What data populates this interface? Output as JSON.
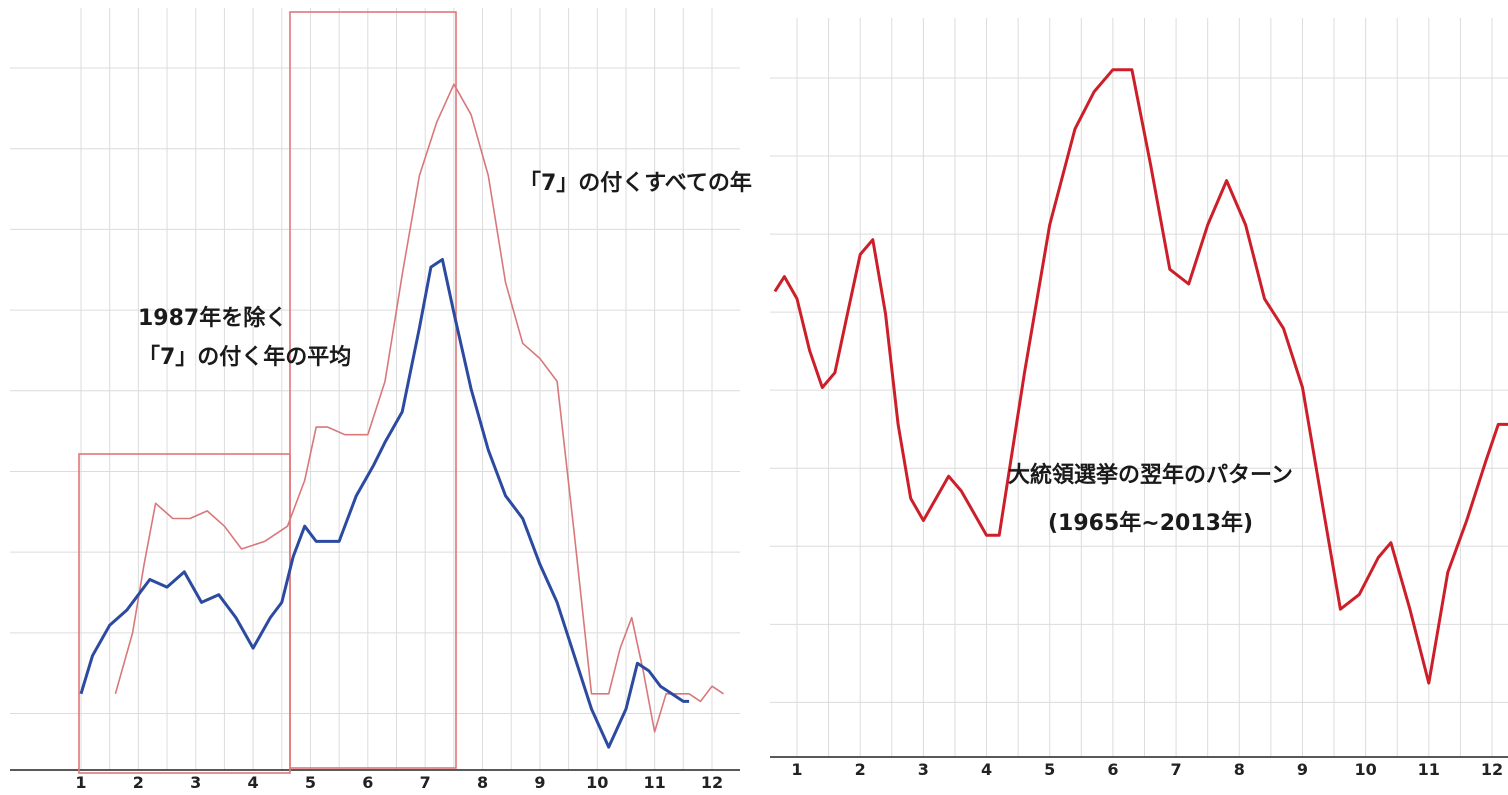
{
  "chart_data": [
    {
      "type": "line",
      "xlim": [
        1,
        12.2
      ],
      "ylim": [
        0,
        100
      ],
      "tick_labels": [
        "1",
        "2",
        "3",
        "4",
        "5",
        "6",
        "7",
        "8",
        "9",
        "10",
        "11",
        "12"
      ],
      "series": [
        {
          "name": "「7」の付くすべての年",
          "color": "#d9787a",
          "x": [
            1.6,
            1.9,
            2.1,
            2.3,
            2.6,
            2.9,
            3.2,
            3.5,
            3.8,
            4.2,
            4.6,
            4.9,
            5.1,
            5.3,
            5.6,
            6.0,
            6.3,
            6.6,
            6.9,
            7.2,
            7.5,
            7.8,
            8.1,
            8.4,
            8.7,
            9.0,
            9.3,
            9.6,
            9.9,
            10.2,
            10.4,
            10.6,
            10.8,
            11.0,
            11.2,
            11.4,
            11.6,
            11.8,
            12.0,
            12.2
          ],
          "y": [
            10,
            18,
            27,
            35,
            33,
            33,
            34,
            32,
            29,
            30,
            32,
            38,
            45,
            45,
            44,
            44,
            51,
            65,
            78,
            85,
            90,
            86,
            78,
            64,
            56,
            54,
            51,
            31,
            10,
            10,
            16,
            20,
            13,
            5,
            10,
            10,
            10,
            9,
            11,
            10
          ]
        },
        {
          "name": "「7」の付く年の平均",
          "color": "#2b4aa0",
          "x": [
            1.0,
            1.2,
            1.5,
            1.8,
            2.0,
            2.2,
            2.5,
            2.8,
            3.1,
            3.4,
            3.7,
            4.0,
            4.3,
            4.5,
            4.7,
            4.9,
            5.1,
            5.3,
            5.5,
            5.8,
            6.1,
            6.3,
            6.6,
            6.9,
            7.1,
            7.3,
            7.5,
            7.8,
            8.1,
            8.4,
            8.7,
            9.0,
            9.3,
            9.6,
            9.9,
            10.2,
            10.5,
            10.7,
            10.9,
            11.1,
            11.3,
            11.5,
            11.6
          ],
          "y": [
            10,
            15,
            19,
            21,
            23,
            25,
            24,
            26,
            22,
            23,
            20,
            16,
            20,
            22,
            28,
            32,
            30,
            30,
            30,
            36,
            40,
            43,
            47,
            58,
            66,
            67,
            60,
            50,
            42,
            36,
            33,
            27,
            22,
            15,
            8,
            3,
            8,
            14,
            13,
            11,
            10,
            9,
            9
          ]
        }
      ]
    },
    {
      "type": "line",
      "xlim": [
        0.65,
        12.3
      ],
      "ylim": [
        0,
        100
      ],
      "tick_labels": [
        "1",
        "2",
        "3",
        "4",
        "5",
        "6",
        "7",
        "8",
        "9",
        "10",
        "11",
        "12"
      ],
      "series": [
        {
          "name": "大統領選挙の翌年のパターン",
          "color": "#cc1f2a",
          "x": [
            0.65,
            0.8,
            1.0,
            1.2,
            1.4,
            1.6,
            1.8,
            2.0,
            2.2,
            2.4,
            2.6,
            2.8,
            3.0,
            3.2,
            3.4,
            3.6,
            3.8,
            4.0,
            4.2,
            4.6,
            5.0,
            5.4,
            5.7,
            6.0,
            6.3,
            6.6,
            6.9,
            7.2,
            7.5,
            7.8,
            8.1,
            8.4,
            8.7,
            9.0,
            9.3,
            9.6,
            9.9,
            10.2,
            10.4,
            10.7,
            11.0,
            11.3,
            11.6,
            11.9,
            12.1,
            12.3
          ],
          "y": [
            63,
            65,
            62,
            55,
            50,
            52,
            60,
            68,
            70,
            60,
            45,
            35,
            32,
            35,
            38,
            36,
            33,
            30,
            30,
            52,
            72,
            85,
            90,
            93,
            93,
            80,
            66,
            64,
            72,
            78,
            72,
            62,
            58,
            50,
            35,
            20,
            22,
            27,
            29,
            20,
            10,
            25,
            32,
            40,
            45,
            45
          ]
        }
      ]
    }
  ],
  "annotations": {
    "all_years_line1": "「7」の付くすべての年",
    "avg_line1": "1987年を除く",
    "avg_line2": "「7」の付く年の平均",
    "pres_line1": "大統領選挙の翌年のパターン",
    "pres_line2": "(1965年~2013年)"
  },
  "colors": {
    "grid": "#dcdcdc",
    "box": "#e0777a",
    "axis": "#222222"
  }
}
